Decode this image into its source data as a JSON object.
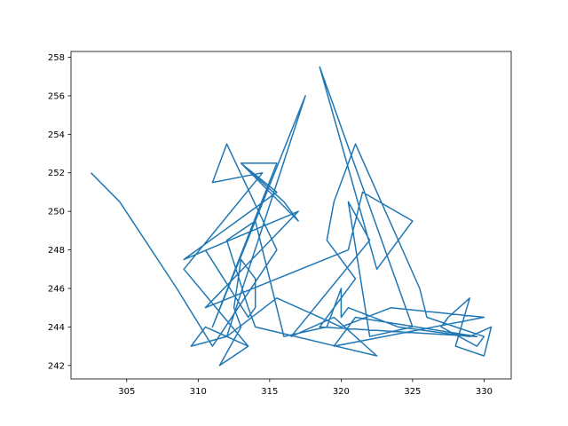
{
  "chart_data": {
    "type": "line",
    "title": "",
    "xlabel": "",
    "ylabel": "",
    "xlim": [
      301.1,
      331.9
    ],
    "ylim": [
      241.3,
      258.3
    ],
    "x_ticks": [
      305,
      310,
      315,
      320,
      325,
      330
    ],
    "y_ticks": [
      242,
      244,
      246,
      248,
      250,
      252,
      254,
      256,
      258
    ],
    "grid": false,
    "legend": "none",
    "series_color": "#1f77b4",
    "x": [
      302.5,
      304.5,
      308.5,
      311.0,
      315.5,
      312.0,
      311.0,
      314.5,
      309.0,
      313.5,
      312.0,
      317.5,
      314.0,
      311.0,
      315.5,
      313.0,
      317.0,
      316.0,
      313.0,
      315.5,
      309.0,
      317.0,
      310.5,
      320.5,
      321.5,
      325.0,
      322.5,
      318.5,
      325.0,
      322.0,
      320.5,
      322.0,
      316.5,
      319.5,
      322.5,
      314.0,
      313.5,
      312.0,
      314.0,
      316.0,
      319.0,
      320.0,
      320.0,
      320.5,
      324.0,
      329.0,
      330.5,
      330.0,
      328.0,
      329.0,
      327.5,
      327.0,
      329.5,
      330.0,
      326.0,
      325.5,
      321.0,
      319.5,
      319.0,
      321.0,
      318.5,
      329.5,
      321.0,
      319.5,
      330.0,
      323.5,
      320.0,
      315.5,
      312.0,
      309.5,
      310.5,
      313.5,
      311.5,
      313.0,
      312.5,
      313.0,
      314.0,
      314.0,
      313.5,
      310.5
    ],
    "y": [
      252.0,
      250.5,
      246.0,
      243.0,
      248.0,
      253.5,
      251.5,
      252.0,
      247.0,
      243.0,
      243.5,
      256.0,
      249.5,
      244.0,
      252.5,
      252.5,
      249.5,
      250.5,
      252.5,
      251.0,
      247.5,
      250.0,
      245.0,
      248.0,
      251.0,
      249.5,
      247.0,
      257.5,
      244.0,
      243.5,
      250.5,
      248.5,
      243.5,
      244.5,
      242.5,
      244.0,
      245.0,
      248.5,
      249.5,
      243.5,
      244.0,
      246.0,
      244.5,
      245.0,
      244.0,
      243.5,
      244.0,
      242.5,
      243.0,
      245.5,
      244.5,
      244.0,
      243.0,
      243.5,
      244.5,
      246.0,
      253.5,
      250.5,
      248.5,
      246.5,
      244.0,
      243.5,
      244.5,
      243.0,
      244.5,
      245.0,
      244.0,
      245.5,
      243.5,
      243.0,
      244.0,
      243.0,
      242.0,
      244.0,
      245.0,
      247.5,
      246.5,
      245.0,
      244.5,
      248.0
    ]
  }
}
